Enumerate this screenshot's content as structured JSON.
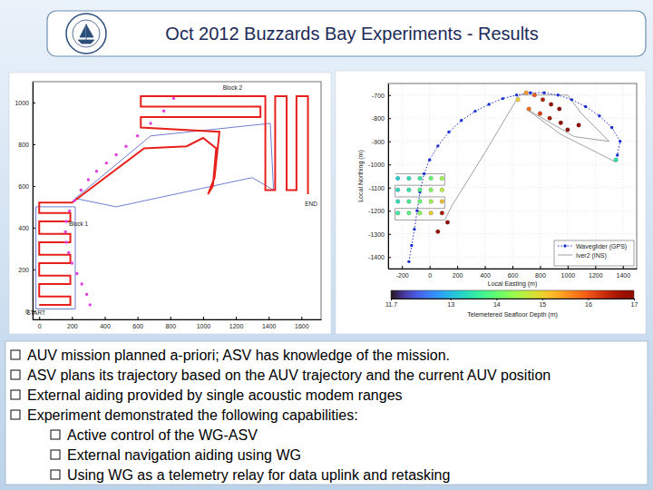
{
  "header": {
    "title": "Oct 2012 Buzzards Bay Experiments - Results"
  },
  "chart_data": [
    {
      "type": "line",
      "xlim": [
        -40,
        1720
      ],
      "ylim": [
        -40,
        1100
      ],
      "xticks": [
        0,
        200,
        400,
        600,
        800,
        1000,
        1200,
        1400,
        1600
      ],
      "yticks": [
        0,
        200,
        400,
        600,
        800,
        1000
      ],
      "grid": false,
      "annotations": [
        {
          "text": "Block 2",
          "x": 1180,
          "y": 1062
        },
        {
          "text": "Block 1",
          "x": 240,
          "y": 410
        },
        {
          "text": "START",
          "x": -20,
          "y": -18
        },
        {
          "text": "END",
          "x": 1660,
          "y": 505
        }
      ],
      "series": [
        {
          "type": "line",
          "color": "#6f7fd0",
          "x": [
            220,
            680,
            1410,
            1430,
            1300,
            470,
            220
          ],
          "y": [
            540,
            840,
            900,
            580,
            640,
            500,
            540
          ]
        },
        {
          "type": "line",
          "color": "#6f7fd0",
          "x": [
            -20,
            220,
            220,
            -20,
            -20
          ],
          "y": [
            10,
            10,
            500,
            500,
            10
          ]
        },
        {
          "type": "line",
          "color": "#e8201c",
          "x": [
            0,
            190,
            190,
            0,
            0,
            190,
            190,
            0,
            0,
            190,
            190,
            0,
            0,
            190,
            190,
            0,
            0,
            190,
            190,
            0,
            0,
            200,
            640,
            900,
            1000,
            1080,
            1060,
            1030,
            1070,
            1100,
            620,
            620,
            1350,
            1350,
            620,
            620,
            1380,
            1380,
            1440,
            1440,
            1510,
            1510,
            1570,
            1570,
            1640,
            1640
          ],
          "y": [
            30,
            30,
            70,
            70,
            130,
            130,
            170,
            170,
            230,
            230,
            270,
            270,
            330,
            330,
            370,
            370,
            430,
            430,
            470,
            470,
            520,
            520,
            780,
            790,
            830,
            780,
            600,
            560,
            640,
            860,
            880,
            930,
            930,
            980,
            980,
            1030,
            1030,
            580,
            580,
            1030,
            1030,
            580,
            580,
            1030,
            1030,
            560
          ]
        },
        {
          "type": "scatter",
          "color": "#e040e0",
          "marker": "circle",
          "x": [
            310,
            290,
            260,
            230,
            200,
            180,
            165,
            160,
            165,
            185,
            215,
            255,
            300,
            350,
            410,
            470,
            530,
            600,
            680,
            760,
            820
          ],
          "y": [
            30,
            80,
            130,
            180,
            230,
            280,
            330,
            380,
            430,
            480,
            530,
            580,
            630,
            670,
            710,
            750,
            790,
            840,
            900,
            960,
            1020
          ]
        }
      ]
    },
    {
      "type": "line",
      "x_label": "Local Easting (m)",
      "y_label": "Local Northing (m)",
      "xlim": [
        -300,
        1500
      ],
      "ylim": [
        -1450,
        -650
      ],
      "xticks": [
        -200,
        0,
        200,
        400,
        600,
        800,
        1000,
        1200,
        1400
      ],
      "yticks": [
        -1400,
        -1300,
        -1200,
        -1100,
        -1000,
        -900,
        -800,
        -700
      ],
      "grid": true,
      "legend": "lower right",
      "colorbar": {
        "title": "Telemetered Seafloor Depth (m)",
        "lim": [
          11.7,
          17
        ],
        "ticks": [
          11.7,
          13,
          14,
          15,
          16,
          17
        ]
      },
      "series": [
        {
          "name": "Iver2 (INS)",
          "type": "line",
          "color": "#a0a0a0",
          "x": [
            -250,
            110,
            110,
            -250,
            -250,
            110,
            110,
            -250,
            -250,
            110,
            160,
            400,
            650,
            1000,
            1100,
            1300,
            1050,
            700,
            950,
            1350
          ],
          "y": [
            -1040,
            -1040,
            -1090,
            -1090,
            -1140,
            -1140,
            -1190,
            -1190,
            -1240,
            -1240,
            -1180,
            -950,
            -700,
            -700,
            -780,
            -900,
            -880,
            -760,
            -870,
            -990
          ]
        },
        {
          "name": "Waveglider (GPS)",
          "type": "line",
          "color": "#1a2fd0",
          "line_style": "dotted",
          "marker": "circle",
          "x": [
            -150,
            -130,
            -110,
            -90,
            -70,
            -40,
            0,
            60,
            140,
            230,
            330,
            430,
            530,
            630,
            730,
            830,
            930,
            1030,
            1130,
            1230,
            1320,
            1380,
            1360
          ],
          "y": [
            -1420,
            -1350,
            -1280,
            -1200,
            -1120,
            -1040,
            -980,
            -920,
            -860,
            -810,
            -770,
            -740,
            -715,
            -700,
            -690,
            -690,
            -700,
            -720,
            -750,
            -790,
            -840,
            -900,
            -960
          ]
        },
        {
          "type": "scatter",
          "marker": "circle",
          "x": [
            -230,
            -150,
            -70,
            10,
            90,
            -230,
            -150,
            -70,
            10,
            90,
            -230,
            -150,
            -70,
            10,
            90,
            -230,
            -150,
            -70,
            10,
            90,
            130,
            60,
            640,
            700,
            760,
            820,
            880,
            940,
            720,
            800,
            870,
            950,
            1000,
            1080,
            1350
          ],
          "y": [
            -1060,
            -1060,
            -1060,
            -1060,
            -1060,
            -1110,
            -1110,
            -1110,
            -1110,
            -1110,
            -1160,
            -1160,
            -1160,
            -1160,
            -1160,
            -1210,
            -1210,
            -1210,
            -1210,
            -1210,
            -1250,
            -1290,
            -720,
            -690,
            -700,
            -720,
            -740,
            -760,
            -760,
            -780,
            -800,
            -820,
            -850,
            -830,
            -980
          ],
          "depth": [
            13.2,
            13.4,
            13.6,
            14.0,
            14.4,
            13.3,
            13.5,
            13.8,
            14.2,
            14.6,
            13.4,
            13.7,
            14.0,
            14.4,
            15.2,
            13.6,
            13.9,
            14.3,
            15.0,
            16.6,
            16.9,
            16.8,
            15.0,
            15.5,
            16.0,
            16.5,
            16.8,
            17.0,
            15.8,
            16.2,
            16.6,
            17.0,
            16.9,
            17.0,
            13.5
          ]
        }
      ]
    }
  ],
  "bullets": [
    {
      "text": "AUV mission planned a-priori; ASV has knowledge of the mission."
    },
    {
      "text": "ASV plans its trajectory based on the AUV trajectory and the current AUV position"
    },
    {
      "text": "External aiding provided by single acoustic modem ranges"
    },
    {
      "text": "Experiment demonstrated the following capabilities:",
      "subitems": [
        "Active control of the WG-ASV",
        "External navigation aiding using WG",
        "Using WG as a telemetry relay for data uplink and retasking"
      ]
    }
  ]
}
